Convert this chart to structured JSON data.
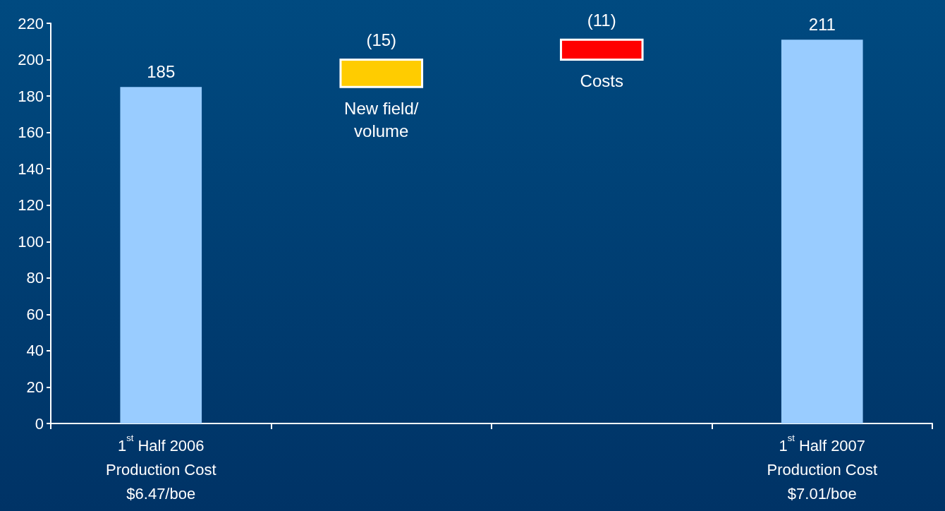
{
  "chart_data": {
    "type": "bar",
    "categories": [
      "1$^{st}$ Half 2006\nProduction Cost\n$6.47/boe",
      "New field/volume",
      "Costs",
      "1$^{st}$ Half 2007\nProduction Cost\n$7.01/boe"
    ],
    "values": [
      185,
      15,
      11,
      211
    ],
    "base": [
      null,
      185,
      200,
      null
    ],
    "colors": [
      "#99ccff",
      "#ffcc00",
      "#ff0000",
      "#99ccff"
    ],
    "value_labels": [
      "185",
      "(15)",
      "(11)",
      "211"
    ],
    "ylim": [
      0,
      220
    ],
    "yticks": [
      0,
      20,
      40,
      60,
      80,
      100,
      120,
      140,
      160,
      180,
      200,
      220
    ],
    "grid": false
  }
}
